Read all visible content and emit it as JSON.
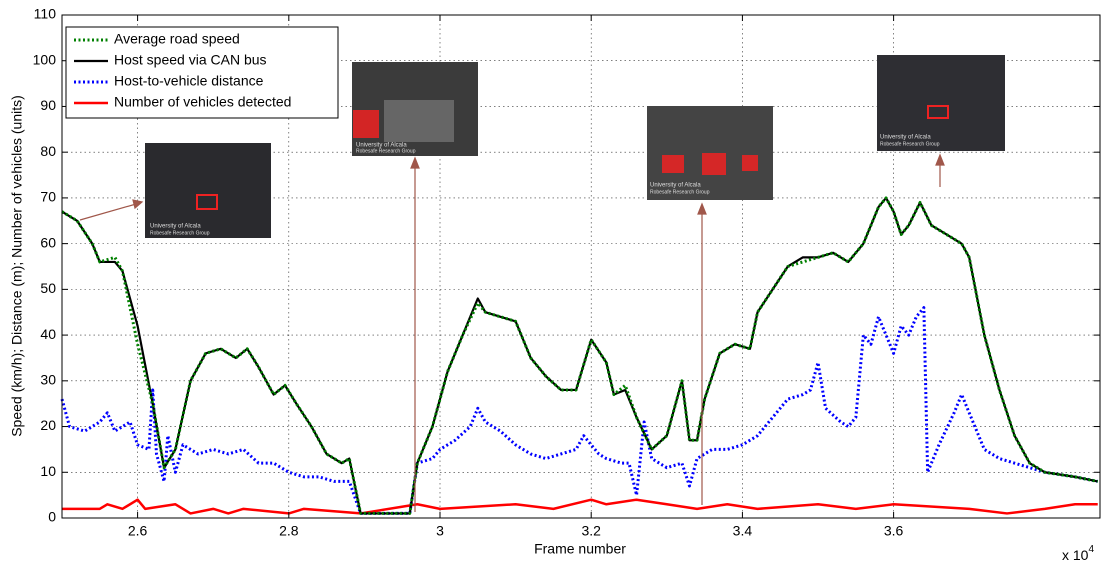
{
  "chart_data": {
    "type": "line",
    "xlabel": "Frame number",
    "ylabel": "Speed (km/h); Distance (m); Number of vehicles (units)",
    "x_multiplier": "x 10",
    "x_multiplier_exponent": "4",
    "xlim": [
      2.5,
      3.873
    ],
    "ylim": [
      0,
      110
    ],
    "xticks": [
      2.6,
      2.8,
      3,
      3.2,
      3.4,
      3.6
    ],
    "yticks": [
      0,
      10,
      20,
      30,
      40,
      50,
      60,
      70,
      80,
      90,
      100,
      110
    ],
    "grid": true,
    "legend": "upper left",
    "inset_text": [
      "University of Alcala",
      "Robesafe Research Group"
    ],
    "series": [
      {
        "name": "Average road speed",
        "color": "#008000",
        "style": "dotted",
        "x": [
          2.5,
          2.52,
          2.54,
          2.55,
          2.57,
          2.58,
          2.6,
          2.62,
          2.635,
          2.65,
          2.67,
          2.69,
          2.71,
          2.73,
          2.745,
          2.76,
          2.78,
          2.795,
          2.81,
          2.83,
          2.85,
          2.87,
          2.88,
          2.89,
          2.895,
          2.96,
          2.97,
          2.99,
          3.01,
          3.03,
          3.05,
          3.06,
          3.08,
          3.1,
          3.12,
          3.14,
          3.16,
          3.18,
          3.2,
          3.22,
          3.23,
          3.245,
          3.26,
          3.28,
          3.3,
          3.31,
          3.32,
          3.33,
          3.34,
          3.35,
          3.37,
          3.39,
          3.41,
          3.42,
          3.44,
          3.46,
          3.48,
          3.5,
          3.52,
          3.54,
          3.56,
          3.58,
          3.59,
          3.6,
          3.61,
          3.62,
          3.635,
          3.65,
          3.67,
          3.69,
          3.7,
          3.72,
          3.74,
          3.76,
          3.78,
          3.8,
          3.84,
          3.87
        ],
        "values": [
          67,
          65,
          60,
          56,
          57,
          54,
          38,
          25,
          11,
          15,
          30,
          36,
          37,
          35,
          37,
          33,
          27,
          29,
          25,
          20,
          14,
          12,
          13,
          5,
          1,
          1,
          12,
          20,
          32,
          40,
          47,
          45,
          44,
          43,
          35,
          31,
          28,
          28,
          39,
          34,
          27,
          29,
          22,
          15,
          18,
          24,
          30,
          17,
          17,
          26,
          36,
          38,
          37,
          45,
          50,
          55,
          56,
          57,
          58,
          56,
          60,
          68,
          70,
          67,
          62,
          64,
          69,
          64,
          62,
          60,
          57,
          40,
          28,
          18,
          12,
          10,
          9,
          8
        ]
      },
      {
        "name": "Host speed via CAN bus",
        "color": "#000000",
        "style": "solid",
        "x": [
          2.5,
          2.52,
          2.54,
          2.55,
          2.57,
          2.58,
          2.6,
          2.62,
          2.635,
          2.65,
          2.67,
          2.69,
          2.71,
          2.73,
          2.745,
          2.76,
          2.78,
          2.795,
          2.81,
          2.83,
          2.85,
          2.87,
          2.88,
          2.89,
          2.895,
          2.96,
          2.97,
          2.99,
          3.01,
          3.03,
          3.05,
          3.06,
          3.08,
          3.1,
          3.12,
          3.14,
          3.16,
          3.18,
          3.2,
          3.22,
          3.23,
          3.245,
          3.26,
          3.28,
          3.3,
          3.31,
          3.32,
          3.33,
          3.34,
          3.35,
          3.37,
          3.39,
          3.41,
          3.42,
          3.44,
          3.46,
          3.48,
          3.5,
          3.52,
          3.54,
          3.56,
          3.58,
          3.59,
          3.6,
          3.61,
          3.62,
          3.635,
          3.65,
          3.67,
          3.69,
          3.7,
          3.72,
          3.74,
          3.76,
          3.78,
          3.8,
          3.84,
          3.87
        ],
        "values": [
          67,
          65,
          60,
          56,
          56,
          54,
          42,
          25,
          11,
          15,
          30,
          36,
          37,
          35,
          37,
          33,
          27,
          29,
          25,
          20,
          14,
          12,
          13,
          5,
          1,
          1,
          12,
          20,
          32,
          40,
          48,
          45,
          44,
          43,
          35,
          31,
          28,
          28,
          39,
          34,
          27,
          28,
          22,
          15,
          18,
          24,
          30,
          17,
          17,
          26,
          36,
          38,
          37,
          45,
          50,
          55,
          57,
          57,
          58,
          56,
          60,
          68,
          70,
          67,
          62,
          64,
          69,
          64,
          62,
          60,
          57,
          40,
          28,
          18,
          12,
          10,
          9,
          8
        ]
      },
      {
        "name": "Host-to-vehicle distance",
        "color": "#0000ff",
        "style": "dotted",
        "x": [
          2.5,
          2.51,
          2.53,
          2.55,
          2.56,
          2.57,
          2.59,
          2.6,
          2.615,
          2.62,
          2.625,
          2.635,
          2.64,
          2.65,
          2.66,
          2.68,
          2.7,
          2.72,
          2.74,
          2.76,
          2.78,
          2.8,
          2.82,
          2.84,
          2.86,
          2.88,
          2.895,
          2.96,
          2.97,
          2.99,
          3.0,
          3.02,
          3.04,
          3.05,
          3.06,
          3.08,
          3.1,
          3.12,
          3.14,
          3.16,
          3.18,
          3.19,
          3.2,
          3.21,
          3.22,
          3.24,
          3.25,
          3.26,
          3.27,
          3.28,
          3.3,
          3.32,
          3.33,
          3.34,
          3.36,
          3.38,
          3.4,
          3.42,
          3.44,
          3.46,
          3.48,
          3.49,
          3.5,
          3.51,
          3.53,
          3.54,
          3.55,
          3.56,
          3.57,
          3.58,
          3.59,
          3.6,
          3.61,
          3.62,
          3.63,
          3.64,
          3.645,
          3.66,
          3.68,
          3.69,
          3.7,
          3.72,
          3.74,
          3.76,
          3.78,
          3.8,
          3.84,
          3.87
        ],
        "values": [
          26,
          20,
          19,
          21,
          23,
          19,
          21,
          16,
          15,
          28,
          14,
          8,
          18,
          10,
          16,
          14,
          15,
          14,
          15,
          12,
          12,
          10,
          9,
          9,
          8,
          8,
          1,
          1,
          12,
          13,
          15,
          17,
          20,
          24,
          21,
          19,
          16,
          14,
          13,
          14,
          15,
          18,
          16,
          14,
          13,
          12,
          12,
          5,
          21,
          13,
          11,
          12,
          7,
          13,
          15,
          15,
          16,
          18,
          22,
          26,
          27,
          28,
          34,
          24,
          21,
          20,
          22,
          40,
          38,
          44,
          40,
          36,
          42,
          40,
          44,
          46,
          10,
          16,
          23,
          27,
          23,
          15,
          13,
          12,
          11,
          10,
          9,
          8
        ]
      },
      {
        "name": "Number of vehicles detected",
        "color": "#ff0000",
        "style": "solid",
        "x": [
          2.5,
          2.55,
          2.56,
          2.58,
          2.6,
          2.61,
          2.65,
          2.67,
          2.7,
          2.72,
          2.74,
          2.8,
          2.82,
          2.895,
          2.97,
          3.0,
          3.1,
          3.15,
          3.2,
          3.22,
          3.26,
          3.3,
          3.34,
          3.38,
          3.42,
          3.5,
          3.55,
          3.6,
          3.7,
          3.75,
          3.8,
          3.84,
          3.87
        ],
        "values": [
          2,
          2,
          3,
          2,
          4,
          2,
          3,
          1,
          2,
          1,
          2,
          1,
          2,
          1,
          3,
          2,
          3,
          2,
          4,
          3,
          4,
          3,
          2,
          3,
          2,
          3,
          2,
          3,
          2,
          1,
          2,
          3,
          3
        ]
      }
    ]
  }
}
